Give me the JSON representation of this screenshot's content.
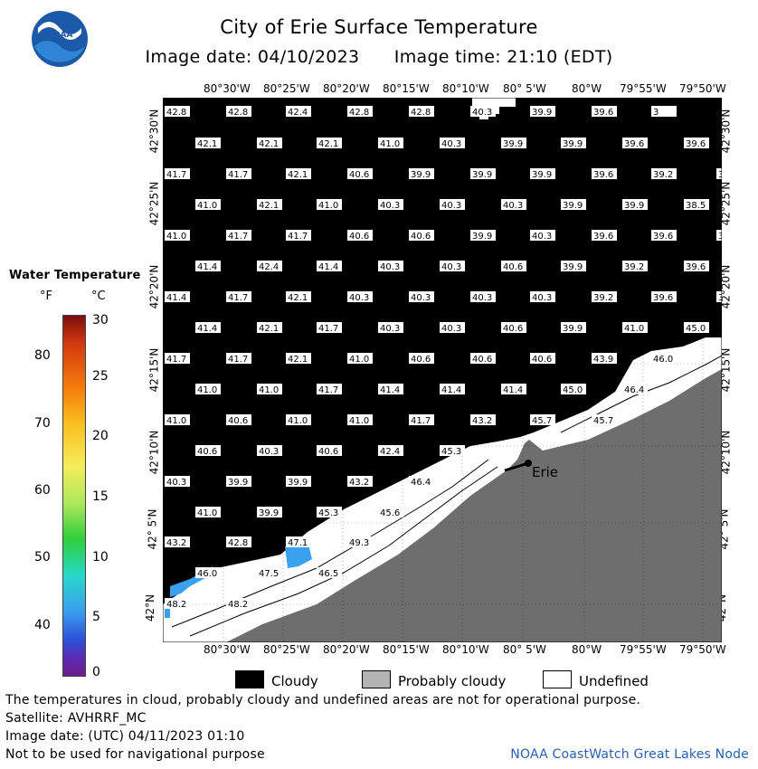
{
  "header": {
    "title": "City of Erie Surface Temperature",
    "image_date": "Image date: 04/10/2023",
    "image_time": "Image time: 21:10 (EDT)"
  },
  "logo": {
    "text": "NOAA"
  },
  "map": {
    "top_lon_labels": [
      "80°30'W",
      "80°25'W",
      "80°20'W",
      "80°15'W",
      "80°10'W",
      "80° 5'W",
      "80°W",
      "79°55'W",
      "79°50'W"
    ],
    "bottom_lon_labels": [
      "80°30'W",
      "80°25'W",
      "80°20'W",
      "80°15'W",
      "80°10'W",
      "80° 5'W",
      "80°W",
      "79°55'W",
      "79°50'W"
    ],
    "lat_labels": [
      "42°30'N",
      "42°25'N",
      "42°20'N",
      "42°15'N",
      "42°10'N",
      "42° 5'N",
      "42°N"
    ],
    "city_label": "Erie",
    "temperature_rows": [
      [
        "42.8",
        "42.8",
        "42.4",
        "42.8",
        "42.8",
        "40.3",
        "39.9",
        "39.6",
        "3"
      ],
      [
        "42.1",
        "42.1",
        "42.1",
        "41.0",
        "40.3",
        "39.9",
        "39.9",
        "39.6",
        "39.6"
      ],
      [
        "41.7",
        "41.7",
        "42.1",
        "40.6",
        "39.9",
        "39.9",
        "39.9",
        "39.6",
        "39.2",
        "3"
      ],
      [
        "41.0",
        "42.1",
        "41.0",
        "40.3",
        "40.3",
        "40.3",
        "39.9",
        "39.9",
        "38.5"
      ],
      [
        "41.0",
        "41.7",
        "41.7",
        "40.6",
        "40.6",
        "39.9",
        "40.3",
        "39.6",
        "39.6",
        "3"
      ],
      [
        "41.4",
        "42.4",
        "41.4",
        "40.3",
        "40.3",
        "40.6",
        "39.9",
        "39.2",
        "39.6"
      ],
      [
        "41.4",
        "41.7",
        "42.1",
        "40.3",
        "40.3",
        "40.3",
        "40.3",
        "39.2",
        "39.6",
        "3"
      ],
      [
        "41.4",
        "42.1",
        "41.7",
        "40.3",
        "40.3",
        "40.6",
        "39.9",
        "41.0",
        "45.0"
      ],
      [
        "41.7",
        "41.7",
        "42.1",
        "41.0",
        "40.6",
        "40.6",
        "40.6",
        "43.9",
        "46.0"
      ],
      [
        "41.0",
        "41.0",
        "41.7",
        "41.4",
        "41.4",
        "41.4",
        "45.0",
        "46.4"
      ],
      [
        "41.0",
        "40.6",
        "41.0",
        "41.0",
        "41.7",
        "43.2",
        "45.7",
        "45.7"
      ],
      [
        "40.6",
        "40.3",
        "40.6",
        "42.4",
        "45.3"
      ],
      [
        "40.3",
        "39.9",
        "39.9",
        "43.2",
        "46.4"
      ],
      [
        "41.0",
        "39.9",
        "45.3",
        "45.6"
      ],
      [
        "43.2",
        "42.8",
        "47.1",
        "49.3"
      ],
      [
        "46.0",
        "47.5",
        "46.5"
      ],
      [
        "48.2",
        "48.2"
      ]
    ]
  },
  "colorbar": {
    "title": "Water Temperature",
    "unit_f": "°F",
    "unit_c": "°C",
    "f_ticks": [
      "80",
      "70",
      "60",
      "50",
      "40"
    ],
    "c_ticks": [
      "30",
      "25",
      "20",
      "15",
      "10",
      "5",
      "0"
    ]
  },
  "legend": {
    "cloudy": "Cloudy",
    "probably_cloudy": "Probably cloudy",
    "undefined": "Undefined"
  },
  "footer": {
    "disclaimer": "The temperatures in cloud, probably cloudy and undefined areas are not for operational purpose.",
    "satellite": "Satellite: AVHRRF_MC",
    "utc_date": "Image date: (UTC) 04/11/2023  01:10",
    "navigation": "Not to be used for navigational purpose",
    "credit": "NOAA CoastWatch Great Lakes Node"
  },
  "colors": {
    "cloudy": "#000000",
    "probably_cloudy": "#b4b4b4",
    "undefined": "#ffffff",
    "land": "#6e6e6e",
    "credit_text": "#2a5fb0"
  }
}
